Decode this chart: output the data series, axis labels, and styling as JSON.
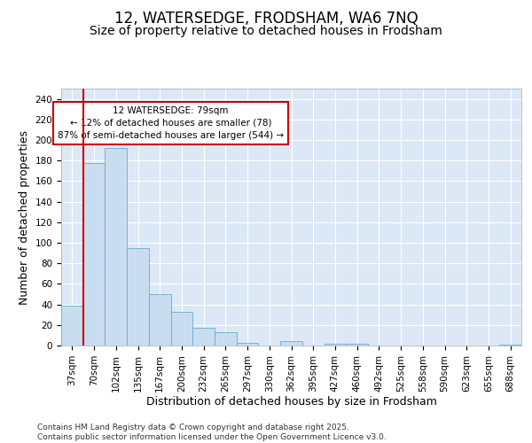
{
  "title_line1": "12, WATERSEDGE, FRODSHAM, WA6 7NQ",
  "title_line2": "Size of property relative to detached houses in Frodsham",
  "xlabel": "Distribution of detached houses by size in Frodsham",
  "ylabel": "Number of detached properties",
  "categories": [
    "37sqm",
    "70sqm",
    "102sqm",
    "135sqm",
    "167sqm",
    "200sqm",
    "232sqm",
    "265sqm",
    "297sqm",
    "330sqm",
    "362sqm",
    "395sqm",
    "427sqm",
    "460sqm",
    "492sqm",
    "525sqm",
    "558sqm",
    "590sqm",
    "623sqm",
    "655sqm",
    "688sqm"
  ],
  "values": [
    39,
    178,
    192,
    95,
    50,
    33,
    17,
    13,
    3,
    0,
    4,
    0,
    2,
    2,
    0,
    0,
    0,
    0,
    0,
    0,
    1
  ],
  "bar_color": "#c9ddf0",
  "bar_edge_color": "#6aaad4",
  "bg_color": "#dce8f5",
  "fig_bg_color": "#ffffff",
  "grid_color": "#ffffff",
  "vline_color": "#cc0000",
  "annotation_text": "12 WATERSEDGE: 79sqm\n← 12% of detached houses are smaller (78)\n87% of semi-detached houses are larger (544) →",
  "annotation_box_color": "#cc0000",
  "annotation_bg": "#ffffff",
  "ylim": [
    0,
    250
  ],
  "yticks": [
    0,
    20,
    40,
    60,
    80,
    100,
    120,
    140,
    160,
    180,
    200,
    220,
    240
  ],
  "footer": "Contains HM Land Registry data © Crown copyright and database right 2025.\nContains public sector information licensed under the Open Government Licence v3.0.",
  "title_fontsize": 12,
  "subtitle_fontsize": 10,
  "axis_label_fontsize": 9,
  "tick_fontsize": 7.5,
  "annotation_fontsize": 7.5,
  "footer_fontsize": 6.5,
  "vline_bar_index": 1
}
